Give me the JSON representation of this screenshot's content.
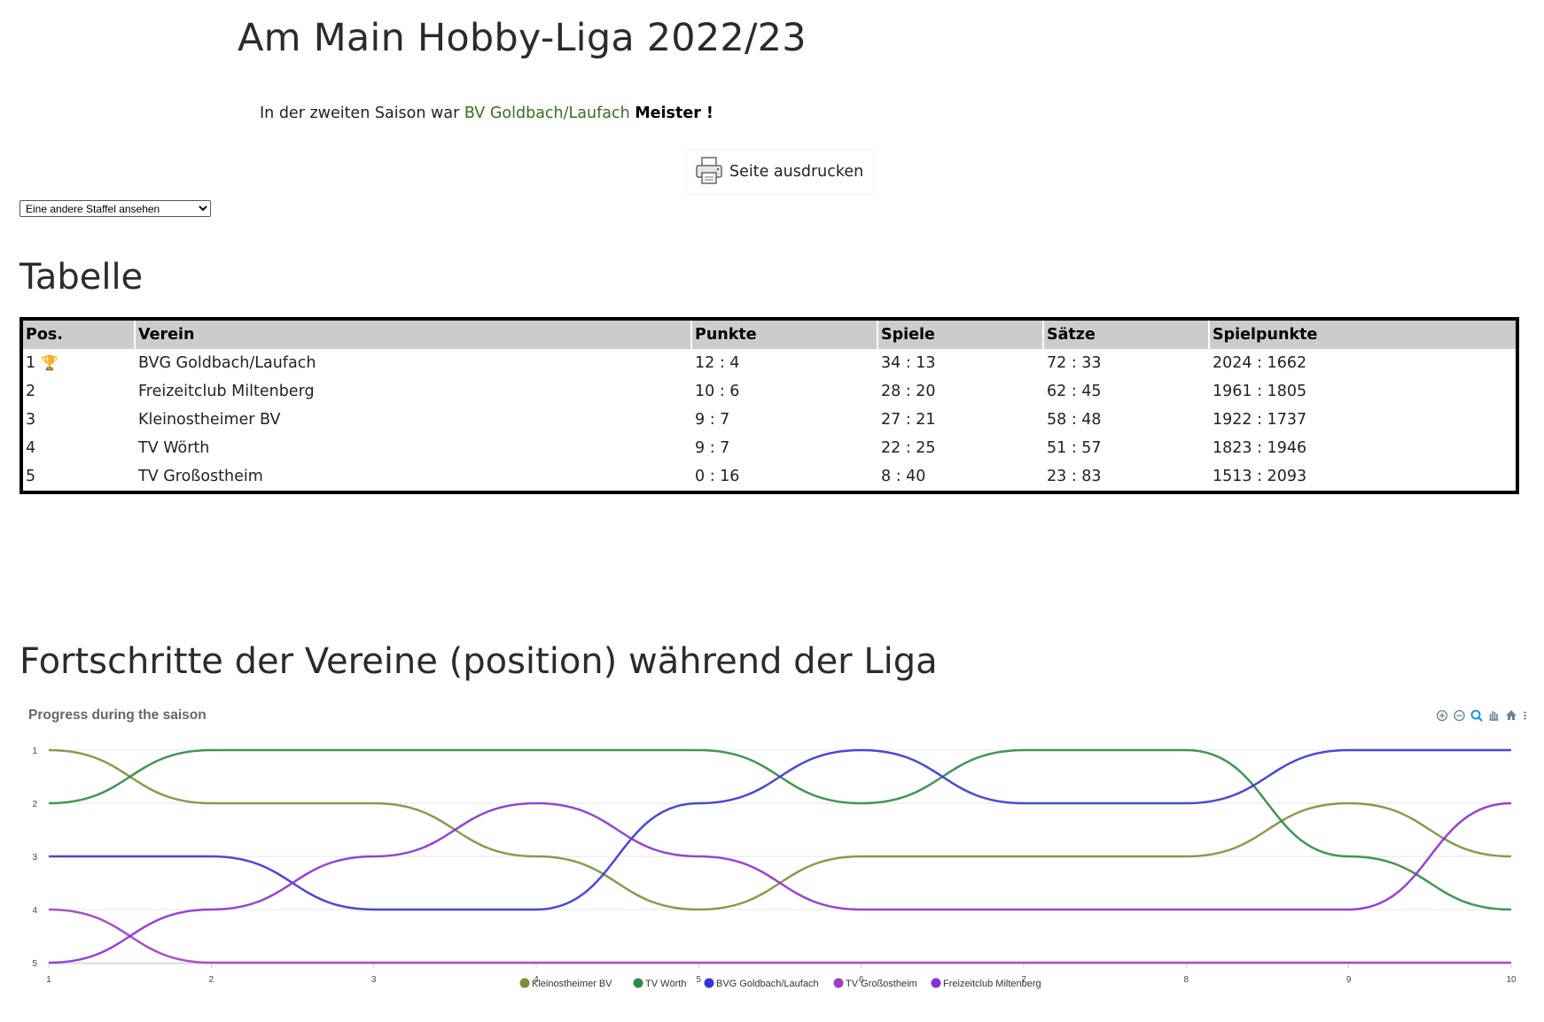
{
  "header": {
    "title": "Am Main Hobby-Liga 2022/23",
    "intro_prefix": "In der zweiten Saison war",
    "intro_club": "BV Goldbach/Laufach",
    "intro_suffix": "Meister !",
    "print_label": "Seite ausdrucken"
  },
  "staffel_select": {
    "selected": "Eine andere Staffel ansehen"
  },
  "table_section": {
    "title": "Tabelle",
    "columns": [
      "Pos.",
      "Verein",
      "Punkte",
      "Spiele",
      "Sätze",
      "Spielpunkte"
    ],
    "rows": [
      {
        "pos": "1",
        "verein": "BVG Goldbach/Laufach",
        "punkte": "12 : 4",
        "spiele": "34 : 13",
        "saetze": "72 : 33",
        "spielpunkte": "2024 : 1662"
      },
      {
        "pos": "2",
        "verein": "Freizeitclub Miltenberg",
        "punkte": "10 : 6",
        "spiele": "28 : 20",
        "saetze": "62 : 45",
        "spielpunkte": "1961 : 1805"
      },
      {
        "pos": "3",
        "verein": "Kleinostheimer BV",
        "punkte": "9 : 7",
        "spiele": "27 : 21",
        "saetze": "58 : 48",
        "spielpunkte": "1922 : 1737"
      },
      {
        "pos": "4",
        "verein": "TV Wörth",
        "punkte": "9 : 7",
        "spiele": "22 : 25",
        "saetze": "51 : 57",
        "spielpunkte": "1823 : 1946"
      },
      {
        "pos": "5",
        "verein": "TV Großostheim",
        "punkte": "0 : 16",
        "spiele": "8 : 40",
        "saetze": "23 : 83",
        "spielpunkte": "1513 : 2093"
      }
    ]
  },
  "progress_section": {
    "title": "Fortschritte der Vereine (position) während der Liga"
  },
  "chart_toolbar": [
    "zoom-in-icon",
    "zoom-out-icon",
    "zoom-select-icon",
    "pan-icon",
    "reset-home-icon",
    "menu-icon"
  ],
  "chart_data": {
    "type": "line",
    "title": "Progress during the saison",
    "x": [
      1,
      2,
      3,
      4,
      5,
      6,
      7,
      8,
      9,
      10
    ],
    "ylim": [
      1,
      5
    ],
    "y_reversed": true,
    "y_ticks": [
      "1",
      "2",
      "3",
      "4",
      "5"
    ],
    "x_ticks": [
      "1",
      "2",
      "3",
      "4",
      "5",
      "6",
      "7",
      "8",
      "9",
      "10"
    ],
    "grid": true,
    "legend_position": "bottom-center",
    "series": [
      {
        "name": "Kleinostheimer BV",
        "color": "#7d8f3a",
        "values": [
          1,
          2,
          2,
          3,
          4,
          3,
          3,
          3,
          2,
          3
        ]
      },
      {
        "name": "TV Wörth",
        "color": "#2e8a45",
        "values": [
          2,
          1,
          1,
          1,
          1,
          2,
          1,
          1,
          3,
          4
        ]
      },
      {
        "name": "BVG Goldbach/Laufach",
        "color": "#3434d6",
        "values": [
          3,
          3,
          4,
          4,
          2,
          1,
          2,
          2,
          1,
          1
        ]
      },
      {
        "name": "TV Großostheim",
        "color": "#9b3fbd",
        "values": [
          4,
          5,
          5,
          5,
          5,
          5,
          5,
          5,
          5,
          5
        ]
      },
      {
        "name": "Freizeitclub Miltenberg",
        "color": "#8a2fd4",
        "values": [
          5,
          4,
          3,
          2,
          3,
          4,
          4,
          4,
          4,
          2
        ]
      }
    ]
  }
}
